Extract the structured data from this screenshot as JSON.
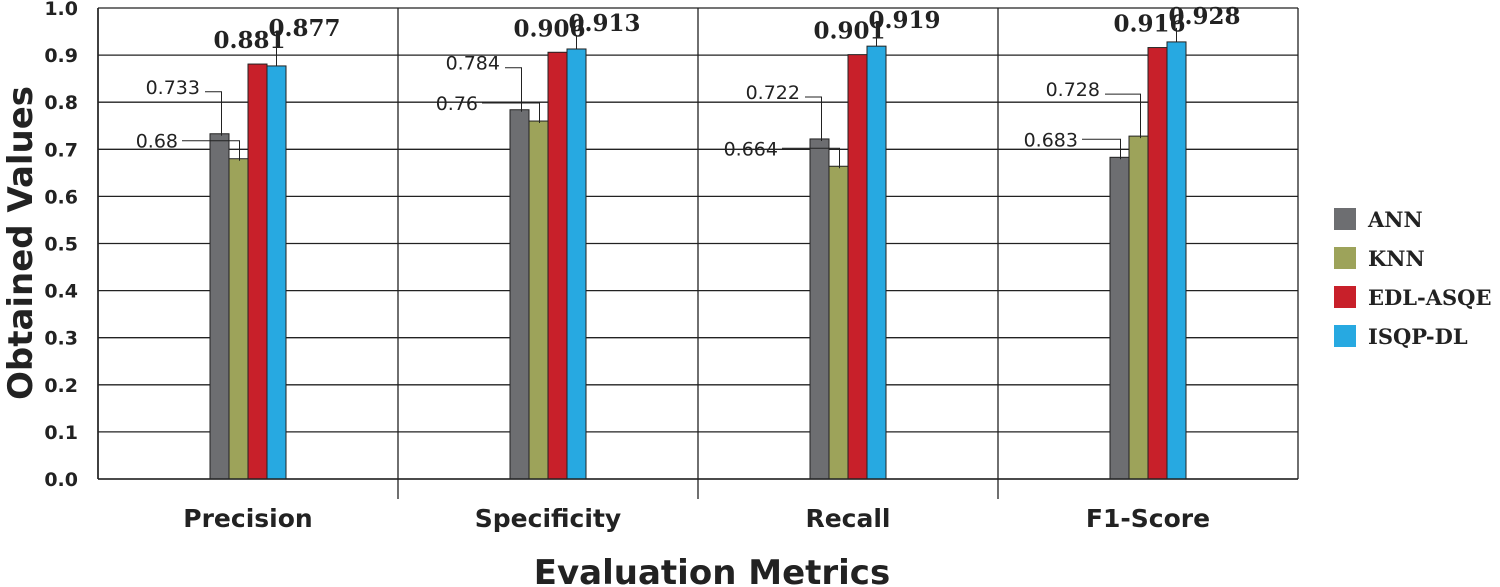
{
  "chart_data": {
    "type": "bar",
    "title": "",
    "xlabel": "Evaluation Metrics",
    "ylabel": "Obtained Values",
    "ylim": [
      0,
      1.0
    ],
    "yticks": [
      "0.0",
      "0.1",
      "0.2",
      "0.3",
      "0.4",
      "0.5",
      "0.6",
      "0.7",
      "0.8",
      "0.9",
      "1.0"
    ],
    "grid": true,
    "legend_position": "right",
    "categories": [
      "Precision",
      "Specificity",
      "Recall",
      "F1-Score"
    ],
    "series": [
      {
        "name": "ANN",
        "color": "#6d6e71",
        "values": [
          0.733,
          0.784,
          0.722,
          0.683
        ]
      },
      {
        "name": "KNN",
        "color": "#9da35a",
        "values": [
          0.68,
          0.76,
          0.664,
          0.728
        ]
      },
      {
        "name": "EDL-ASQE",
        "color": "#c8202a",
        "values": [
          0.881,
          0.906,
          0.901,
          0.916
        ]
      },
      {
        "name": "ISQP-DL",
        "color": "#27a9e1",
        "values": [
          0.877,
          0.913,
          0.919,
          0.928
        ]
      }
    ],
    "data_labels": [
      [
        "0.733",
        "0.68",
        "0.881",
        "0.877"
      ],
      [
        "0.784",
        "0.76",
        "0.906",
        "0.913"
      ],
      [
        "0.722",
        "0.664",
        "0.901",
        "0.919"
      ],
      [
        "0.683",
        "0.728",
        "0.916",
        "0.928"
      ]
    ]
  }
}
